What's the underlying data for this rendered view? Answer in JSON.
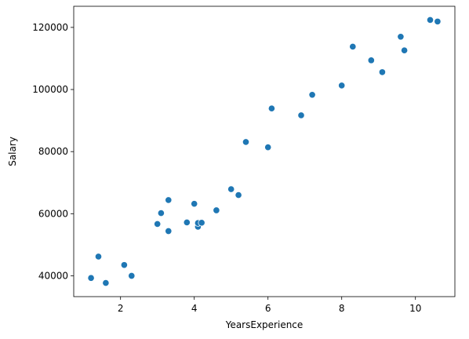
{
  "chart_data": {
    "type": "scatter",
    "title": "",
    "xlabel": "YearsExperience",
    "ylabel": "Salary",
    "xlim": [
      0.73,
      11.07
    ],
    "ylim": [
      33300,
      126800
    ],
    "xticks": [
      2,
      4,
      6,
      8,
      10
    ],
    "xtick_labels": [
      "2",
      "4",
      "6",
      "8",
      "10"
    ],
    "yticks": [
      40000,
      60000,
      80000,
      100000,
      120000
    ],
    "ytick_labels": [
      "40000",
      "60000",
      "80000",
      "100000",
      "120000"
    ],
    "grid": false,
    "marker_color": "#1f77b4",
    "points": [
      {
        "x": 1.2,
        "y": 39300
      },
      {
        "x": 1.4,
        "y": 46200
      },
      {
        "x": 1.6,
        "y": 37700
      },
      {
        "x": 2.1,
        "y": 43500
      },
      {
        "x": 2.3,
        "y": 40000
      },
      {
        "x": 3.0,
        "y": 56700
      },
      {
        "x": 3.1,
        "y": 60200
      },
      {
        "x": 3.3,
        "y": 54400
      },
      {
        "x": 3.3,
        "y": 64400
      },
      {
        "x": 3.8,
        "y": 57200
      },
      {
        "x": 4.0,
        "y": 63200
      },
      {
        "x": 4.1,
        "y": 55800
      },
      {
        "x": 4.1,
        "y": 57000
      },
      {
        "x": 4.2,
        "y": 57100
      },
      {
        "x": 4.6,
        "y": 61100
      },
      {
        "x": 5.0,
        "y": 67900
      },
      {
        "x": 5.2,
        "y": 66000
      },
      {
        "x": 5.4,
        "y": 83100
      },
      {
        "x": 6.0,
        "y": 81400
      },
      {
        "x": 6.1,
        "y": 93900
      },
      {
        "x": 6.9,
        "y": 91700
      },
      {
        "x": 7.2,
        "y": 98300
      },
      {
        "x": 8.0,
        "y": 101300
      },
      {
        "x": 8.3,
        "y": 113800
      },
      {
        "x": 8.8,
        "y": 109400
      },
      {
        "x": 9.1,
        "y": 105600
      },
      {
        "x": 9.6,
        "y": 117000
      },
      {
        "x": 9.7,
        "y": 112600
      },
      {
        "x": 10.4,
        "y": 122400
      },
      {
        "x": 10.6,
        "y": 121900
      }
    ]
  }
}
